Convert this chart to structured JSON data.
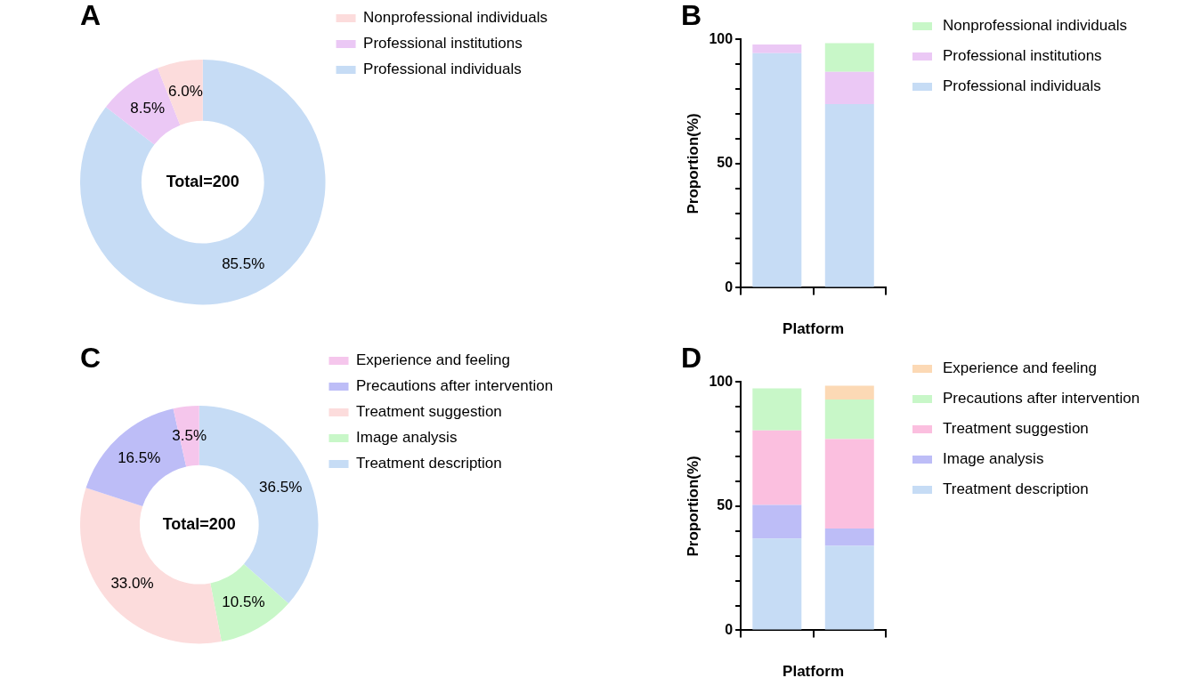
{
  "chart_data": [
    {
      "type": "donut",
      "title": "A",
      "categories": [
        "Professional individuals",
        "Professional institutions",
        "Nonprofessional individuals"
      ],
      "values": [
        85.5,
        8.5,
        6.0
      ],
      "colors": [
        "#c6dcf5",
        "#ebc8f5",
        "#fcdcdc"
      ],
      "value_labels": [
        "85.5%",
        "8.5%",
        "6.0%"
      ],
      "annotations": [
        "Total=200"
      ],
      "legend": "top right"
    },
    {
      "type": "bar",
      "title": "B",
      "categories": [
        null,
        null
      ],
      "stacked": true,
      "xlabel": "Platform",
      "ylabel": "Proportion(%)",
      "ylim": [
        0,
        100
      ],
      "yticks": [
        0,
        {
          "value": 10,
          "label": null
        },
        {
          "value": 20,
          "label": null
        },
        {
          "value": 30,
          "label": null
        },
        {
          "value": 40,
          "label": null
        },
        50,
        {
          "value": 60,
          "label": null
        },
        {
          "value": 70,
          "label": null
        },
        {
          "value": 80,
          "label": null
        },
        {
          "value": 90,
          "label": null
        },
        100
      ],
      "legend": "top right",
      "series": [
        {
          "name": "Professional individuals",
          "color": "#c6dcf5",
          "values": [
            94.5,
            74
          ]
        },
        {
          "name": "Professional institutions",
          "color": "#ebc8f5",
          "values": [
            3.5,
            13
          ]
        },
        {
          "name": "Nonprofessional individuals",
          "color": "#c8f7c8",
          "values": [
            0,
            11.5
          ]
        }
      ]
    },
    {
      "type": "donut",
      "title": "C",
      "categories": [
        "Treatment description",
        "Image analysis",
        "Treatment suggestion",
        "Precautions after intervention",
        "Experience and feeling"
      ],
      "values": [
        36.5,
        10.5,
        33.0,
        16.5,
        3.5
      ],
      "colors": [
        "#c6dcf5",
        "#c8f7c8",
        "#fcdcdc",
        "#bdbdf7",
        "#f5c6ec"
      ],
      "value_labels": [
        "36.5%",
        "10.5%",
        "33.0%",
        "16.5%",
        "3.5%"
      ],
      "annotations": [
        "Total=200"
      ],
      "legend": "top right"
    },
    {
      "type": "bar",
      "title": "D",
      "categories": [
        null,
        null
      ],
      "stacked": true,
      "xlabel": "Platform",
      "ylabel": "Proportion(%)",
      "ylim": [
        0,
        100
      ],
      "yticks": [
        0,
        {
          "value": 10,
          "label": null
        },
        {
          "value": 20,
          "label": null
        },
        {
          "value": 30,
          "label": null
        },
        {
          "value": 40,
          "label": null
        },
        50,
        {
          "value": 60,
          "label": null
        },
        {
          "value": 70,
          "label": null
        },
        {
          "value": 80,
          "label": null
        },
        {
          "value": 90,
          "label": null
        },
        100
      ],
      "legend": "top right",
      "series": [
        {
          "name": "Treatment description",
          "color": "#c6dcf5",
          "values": [
            37,
            34
          ]
        },
        {
          "name": "Image analysis",
          "color": "#bdbdf7",
          "values": [
            13.5,
            7
          ]
        },
        {
          "name": "Treatment suggestion",
          "color": "#fbbfdf",
          "values": [
            30,
            36
          ]
        },
        {
          "name": "Precautions after intervention",
          "color": "#c8f7c8",
          "values": [
            17,
            16
          ]
        },
        {
          "name": "Experience and feeling",
          "color": "#fcd9b5",
          "values": [
            0,
            5.5
          ]
        }
      ]
    }
  ]
}
